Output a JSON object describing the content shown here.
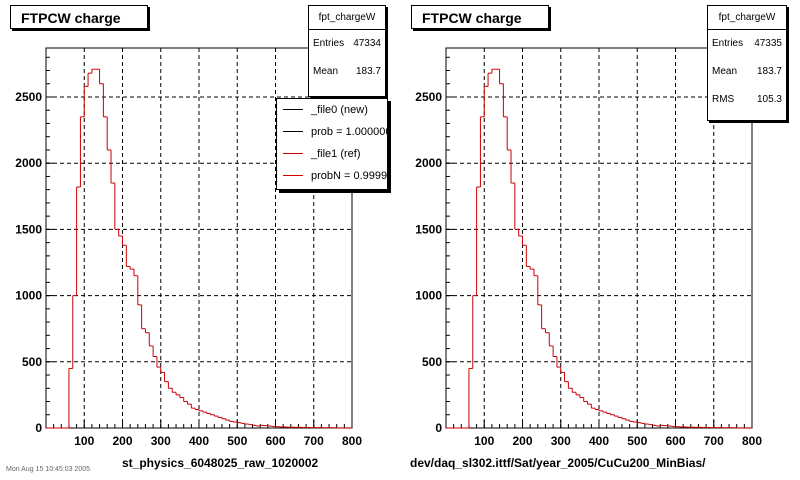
{
  "chart_data": [
    {
      "type": "bar",
      "title": "FTPCW charge",
      "xlabel": "st_physics_6048025_raw_1020002",
      "ylabel": "",
      "xlim": [
        0,
        800
      ],
      "ylim": [
        0,
        2870
      ],
      "xticks": [
        "100",
        "200",
        "300",
        "400",
        "500",
        "600",
        "700",
        "800"
      ],
      "yticks": [
        "0",
        "500",
        "1000",
        "1500",
        "2000",
        "2500"
      ],
      "grid": true,
      "stats": {
        "name": "fpt_chargeW",
        "entries_label": "Entries",
        "entries": "47334",
        "mean_label": "Mean",
        "mean": "183.7"
      },
      "legend": {
        "placement": "top-right",
        "entries": [
          {
            "label": "_file0 (new)",
            "color": "#000000"
          },
          {
            "label": "prob = 1.000000",
            "color": "#000000"
          },
          {
            "label": "_file1 (ref)",
            "color": "#cc0000"
          },
          {
            "label": "probN = 0.99999",
            "color": "#cc0000"
          }
        ]
      },
      "series": [
        {
          "color": "#cc0000",
          "bin_width": 10,
          "x": [
            0,
            10,
            20,
            30,
            40,
            50,
            60,
            70,
            80,
            90,
            100,
            110,
            120,
            130,
            140,
            150,
            160,
            170,
            180,
            190,
            200,
            210,
            220,
            230,
            240,
            250,
            260,
            270,
            280,
            290,
            300,
            310,
            320,
            330,
            340,
            350,
            360,
            370,
            380,
            390,
            400,
            410,
            420,
            430,
            440,
            450,
            460,
            470,
            480,
            490,
            500,
            510,
            520,
            530,
            540,
            550,
            560,
            570,
            580,
            590,
            600,
            610,
            620,
            630,
            640,
            650,
            660,
            670,
            680,
            690,
            700,
            710,
            720,
            730,
            740,
            750,
            760,
            770,
            780,
            790
          ],
          "values": [
            0,
            0,
            0,
            0,
            0,
            0,
            450,
            1000,
            1820,
            2350,
            2580,
            2680,
            2710,
            2710,
            2600,
            2350,
            2100,
            1850,
            1500,
            1450,
            1380,
            1220,
            1200,
            1150,
            930,
            750,
            720,
            620,
            540,
            460,
            420,
            350,
            300,
            270,
            250,
            230,
            200,
            180,
            150,
            140,
            130,
            120,
            110,
            100,
            90,
            80,
            70,
            60,
            50,
            45,
            40,
            35,
            30,
            25,
            20,
            15,
            20,
            18,
            15,
            12,
            10,
            8,
            8,
            6,
            6,
            5,
            5,
            4,
            4,
            3,
            3,
            3,
            2,
            2,
            2,
            2,
            1,
            1,
            1,
            1
          ]
        }
      ]
    },
    {
      "type": "bar",
      "title": "FTPCW charge",
      "xlabel": "dev/daq_sl302.ittf/Sat/year_2005/CuCu200_MinBias/",
      "ylabel": "",
      "xlim": [
        0,
        800
      ],
      "ylim": [
        0,
        2870
      ],
      "xticks": [
        "100",
        "200",
        "300",
        "400",
        "500",
        "600",
        "700",
        "800"
      ],
      "yticks": [
        "0",
        "500",
        "1000",
        "1500",
        "2000",
        "2500"
      ],
      "grid": true,
      "stats": {
        "name": "fpt_chargeW",
        "entries_label": "Entries",
        "entries": "47335",
        "mean_label": "Mean",
        "mean": "183.7",
        "rms_label": "RMS",
        "rms": "105.3"
      },
      "series": [
        {
          "color": "#cc0000",
          "bin_width": 10,
          "x": [
            0,
            10,
            20,
            30,
            40,
            50,
            60,
            70,
            80,
            90,
            100,
            110,
            120,
            130,
            140,
            150,
            160,
            170,
            180,
            190,
            200,
            210,
            220,
            230,
            240,
            250,
            260,
            270,
            280,
            290,
            300,
            310,
            320,
            330,
            340,
            350,
            360,
            370,
            380,
            390,
            400,
            410,
            420,
            430,
            440,
            450,
            460,
            470,
            480,
            490,
            500,
            510,
            520,
            530,
            540,
            550,
            560,
            570,
            580,
            590,
            600,
            610,
            620,
            630,
            640,
            650,
            660,
            670,
            680,
            690,
            700,
            710,
            720,
            730,
            740,
            750,
            760,
            770,
            780,
            790
          ],
          "values": [
            0,
            0,
            0,
            0,
            0,
            0,
            450,
            1000,
            1820,
            2350,
            2580,
            2680,
            2710,
            2710,
            2600,
            2350,
            2100,
            1850,
            1500,
            1450,
            1380,
            1220,
            1200,
            1150,
            930,
            750,
            720,
            620,
            540,
            460,
            420,
            350,
            300,
            270,
            250,
            230,
            200,
            180,
            150,
            140,
            130,
            120,
            110,
            100,
            90,
            80,
            70,
            60,
            50,
            45,
            40,
            35,
            30,
            25,
            20,
            15,
            20,
            18,
            15,
            12,
            10,
            8,
            8,
            6,
            6,
            5,
            5,
            4,
            4,
            3,
            3,
            3,
            2,
            2,
            2,
            2,
            1,
            1,
            1,
            1
          ]
        }
      ]
    }
  ],
  "footer": "Mon Aug 15 10:45:03 2005"
}
